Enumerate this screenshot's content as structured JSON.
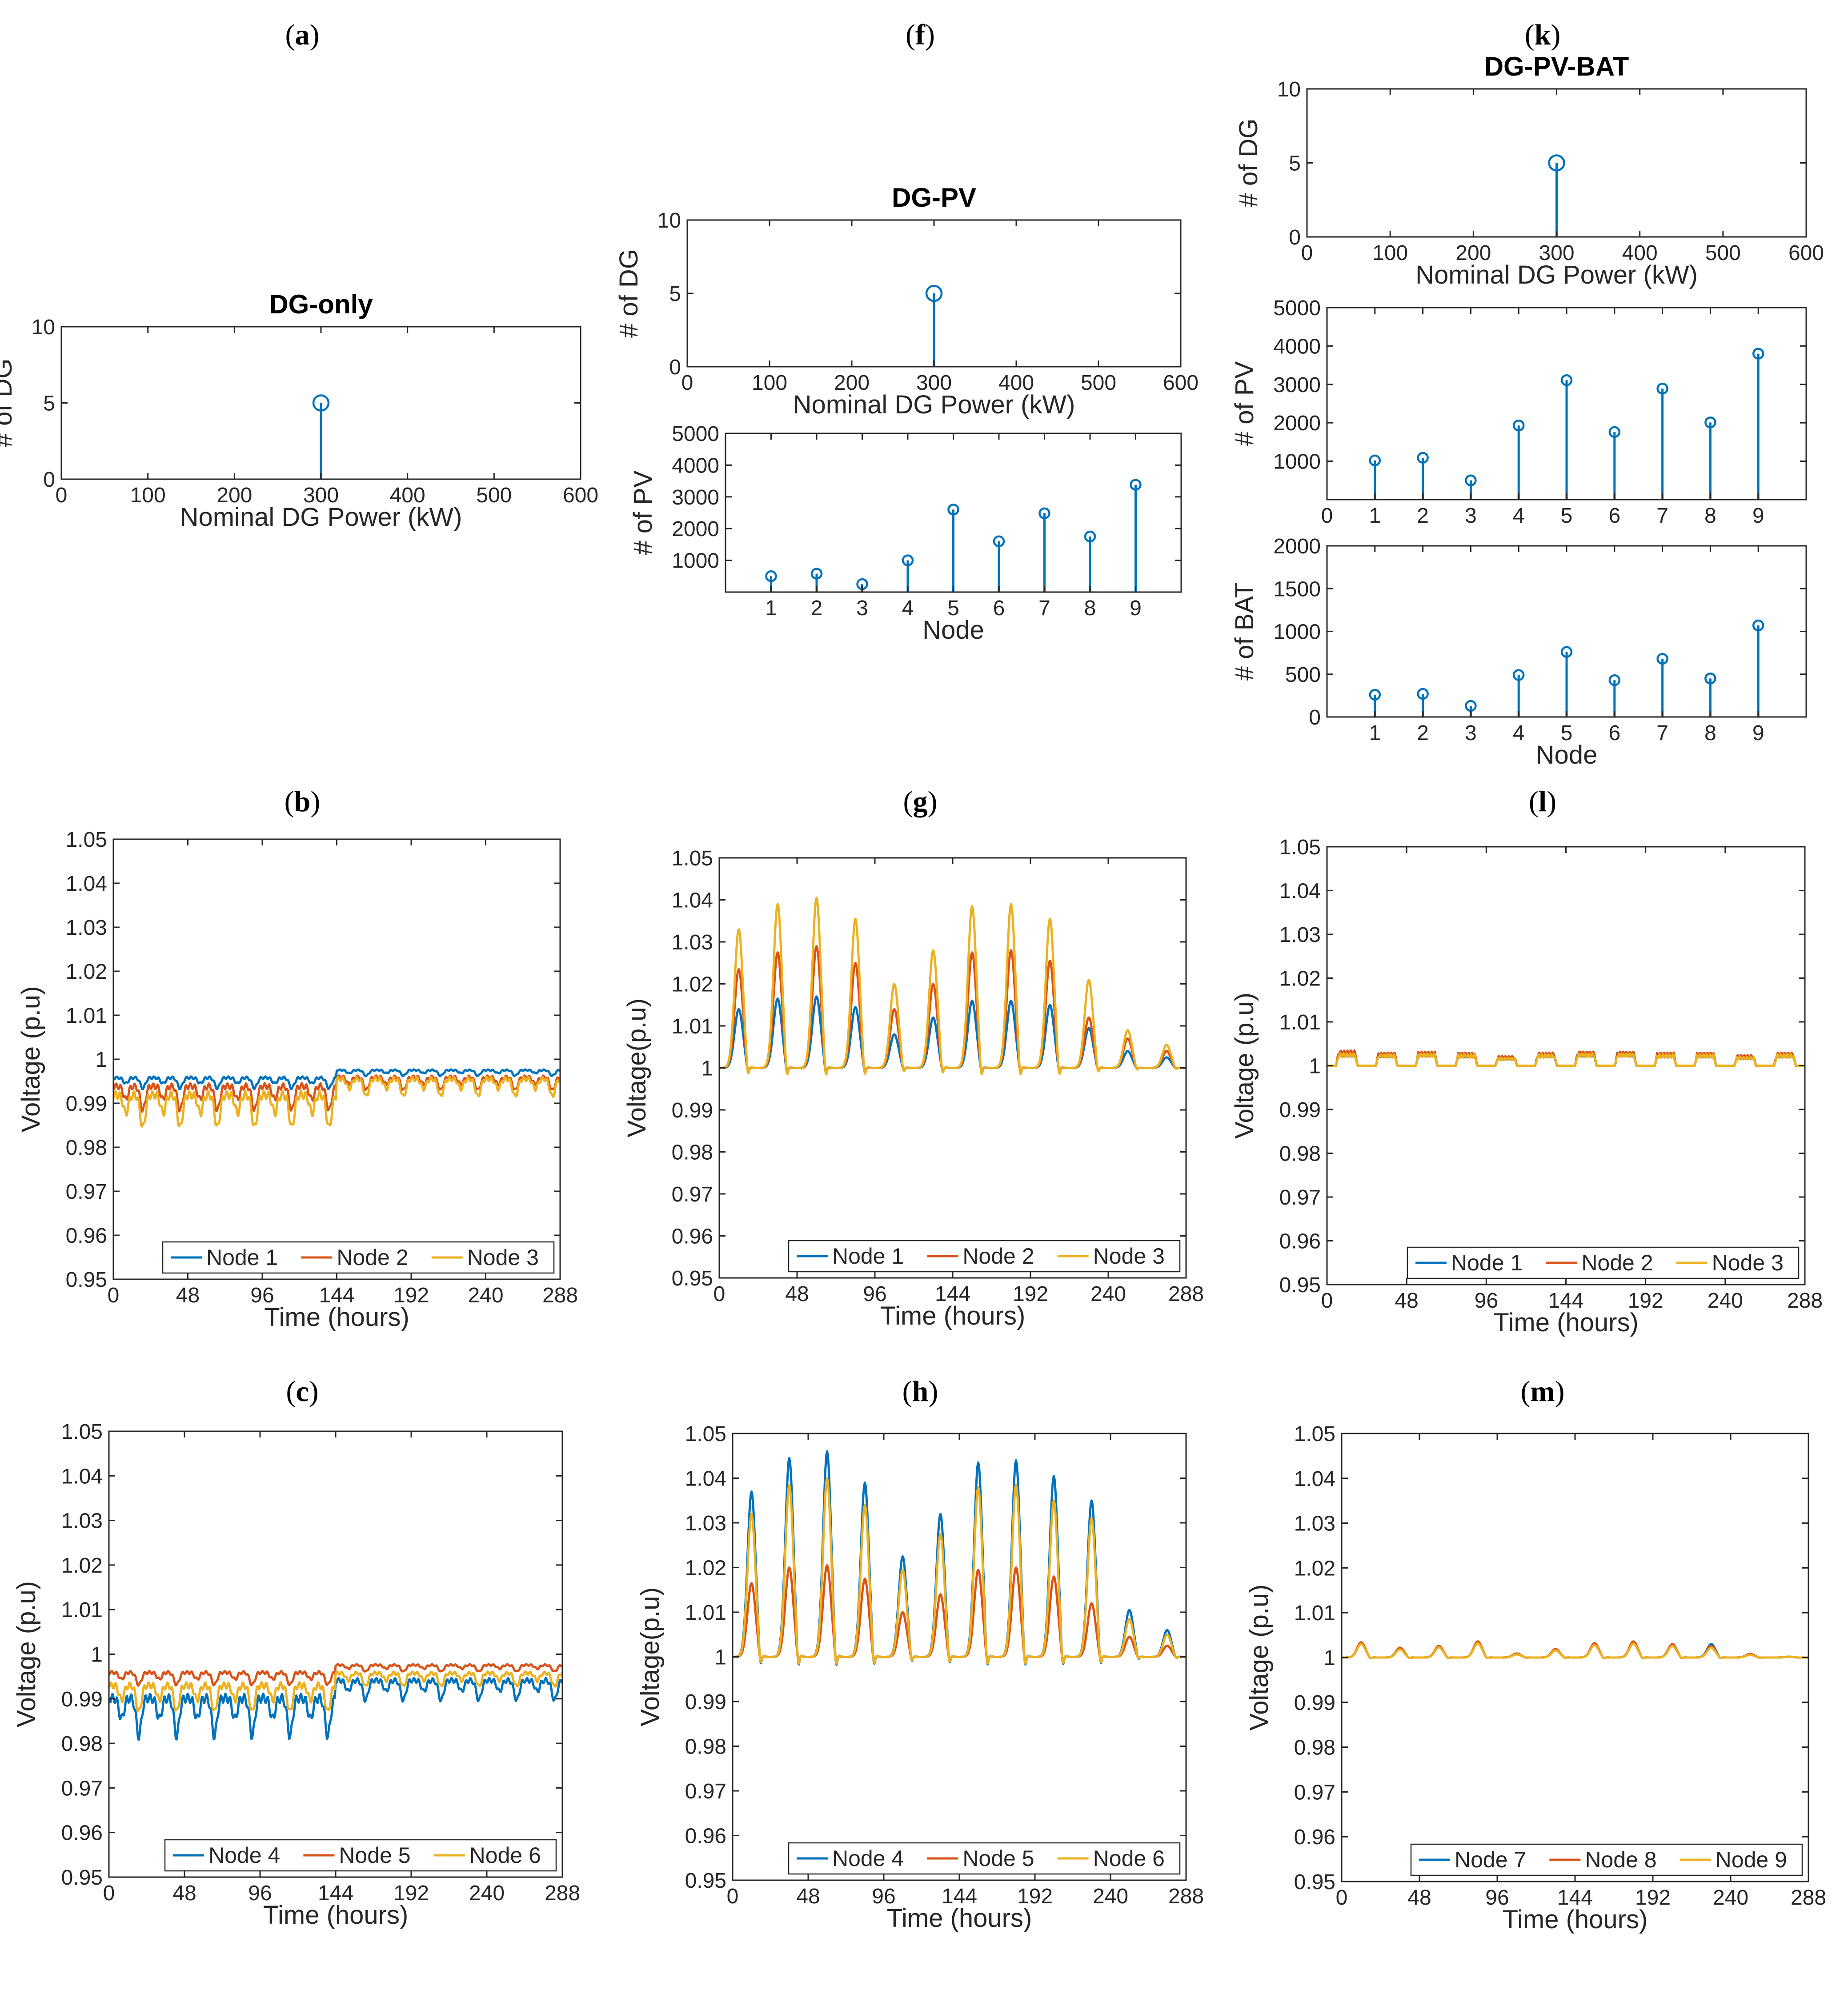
{
  "colors": {
    "series1": "#0072BD",
    "series2": "#D95319",
    "series3": "#EDB120",
    "axis": "#262626",
    "stem": "#0072BD"
  },
  "chart_data": [
    {
      "id": "a",
      "panel_label": "a",
      "type": "stem",
      "title": "DG-only",
      "xlabel": "Nominal DG Power (kW)",
      "ylabel": "# of DG",
      "xlim": [
        0,
        600
      ],
      "ylim": [
        0,
        10
      ],
      "xticks": [
        "0",
        "100",
        "200",
        "300",
        "400",
        "500",
        "600"
      ],
      "yticks": [
        "0",
        "5",
        "10"
      ],
      "x": [
        300
      ],
      "values": [
        5
      ]
    },
    {
      "id": "f1",
      "panel_label": "f",
      "type": "stem",
      "title": "DG-PV",
      "xlabel": "Nominal DG Power (kW)",
      "ylabel": "# of DG",
      "xlim": [
        0,
        600
      ],
      "ylim": [
        0,
        10
      ],
      "xticks": [
        "0",
        "100",
        "200",
        "300",
        "400",
        "500",
        "600"
      ],
      "yticks": [
        "0",
        "5",
        "10"
      ],
      "x": [
        300
      ],
      "values": [
        5
      ]
    },
    {
      "id": "f2",
      "panel_label": "",
      "type": "stem",
      "title": "",
      "xlabel": "Node",
      "ylabel": "# of PV",
      "xlim": [
        0,
        10
      ],
      "ylim": [
        0,
        5000
      ],
      "xticks": [
        "1",
        "2",
        "3",
        "4",
        "5",
        "6",
        "7",
        "8",
        "9"
      ],
      "yticks": [
        "1000",
        "2000",
        "3000",
        "4000",
        "5000"
      ],
      "x": [
        1,
        2,
        3,
        4,
        5,
        6,
        7,
        8,
        9
      ],
      "values": [
        500,
        580,
        250,
        1000,
        2600,
        1600,
        2480,
        1750,
        3380
      ]
    },
    {
      "id": "k1",
      "panel_label": "k",
      "type": "stem",
      "title": "DG-PV-BAT",
      "xlabel": "Nominal DG Power (kW)",
      "ylabel": "# of DG",
      "xlim": [
        0,
        600
      ],
      "ylim": [
        0,
        10
      ],
      "xticks": [
        "0",
        "100",
        "200",
        "300",
        "400",
        "500",
        "600"
      ],
      "yticks": [
        "0",
        "5",
        "10"
      ],
      "x": [
        300
      ],
      "values": [
        5
      ]
    },
    {
      "id": "k2",
      "panel_label": "",
      "type": "stem",
      "title": "",
      "xlabel": "",
      "ylabel": "# of PV",
      "xlim": [
        0,
        10
      ],
      "ylim": [
        0,
        5000
      ],
      "xticks": [
        "0",
        "1",
        "2",
        "3",
        "4",
        "5",
        "6",
        "7",
        "8",
        "9"
      ],
      "yticks": [
        "1000",
        "2000",
        "3000",
        "4000",
        "5000"
      ],
      "x": [
        1,
        2,
        3,
        4,
        5,
        6,
        7,
        8,
        9
      ],
      "values": [
        1020,
        1090,
        500,
        1930,
        3110,
        1760,
        2890,
        2010,
        3800
      ]
    },
    {
      "id": "k3",
      "panel_label": "",
      "type": "stem",
      "title": "",
      "xlabel": "Node",
      "ylabel": "# of BAT",
      "xlim": [
        0,
        10
      ],
      "ylim": [
        0,
        2000
      ],
      "xticks": [
        "1",
        "2",
        "3",
        "4",
        "5",
        "6",
        "7",
        "8",
        "9"
      ],
      "yticks": [
        "0",
        "500",
        "1000",
        "1500",
        "2000"
      ],
      "x": [
        1,
        2,
        3,
        4,
        5,
        6,
        7,
        8,
        9
      ],
      "values": [
        260,
        270,
        130,
        490,
        760,
        430,
        680,
        450,
        1070
      ]
    },
    {
      "id": "b",
      "panel_label": "b",
      "type": "line",
      "title": "",
      "xlabel": "Time (hours)",
      "ylabel": "Voltage (p.u)",
      "xlim": [
        0,
        288
      ],
      "ylim": [
        0.95,
        1.05
      ],
      "xticks": [
        "0",
        "48",
        "96",
        "144",
        "192",
        "240",
        "288"
      ],
      "yticks": [
        "0.95",
        "0.96",
        "0.97",
        "0.98",
        "0.99",
        "1",
        "1.01",
        "1.02",
        "1.03",
        "1.04",
        "1.05"
      ],
      "legend_position": "bottom-right",
      "series": [
        {
          "name": "Node 1",
          "pattern": "load",
          "base1": 0.9952,
          "amp1": 0.0024,
          "base2": 0.9972,
          "amp2": 0.0013
        },
        {
          "name": "Node 2",
          "pattern": "load",
          "base1": 0.9925,
          "amp1": 0.0055,
          "base2": 0.9952,
          "amp2": 0.003
        },
        {
          "name": "Node 3",
          "pattern": "load",
          "base1": 0.99,
          "amp1": 0.0075,
          "base2": 0.9945,
          "amp2": 0.004
        }
      ]
    },
    {
      "id": "g",
      "panel_label": "g",
      "type": "line",
      "title": "",
      "xlabel": "Time (hours)",
      "ylabel": "Voltage(p.u)",
      "xlim": [
        0,
        288
      ],
      "ylim": [
        0.95,
        1.05
      ],
      "xticks": [
        "0",
        "48",
        "96",
        "144",
        "192",
        "240",
        "288"
      ],
      "yticks": [
        "0.95",
        "0.96",
        "0.97",
        "0.98",
        "0.99",
        "1",
        "1.01",
        "1.02",
        "1.03",
        "1.04",
        "1.05"
      ],
      "legend_position": "bottom-right",
      "peak_centers": [
        12,
        36,
        60,
        84,
        108,
        132,
        156,
        180,
        204,
        228,
        252,
        276
      ],
      "series": [
        {
          "name": "Node 1",
          "pattern": "solar",
          "peaks": [
            0.014,
            0.0165,
            0.017,
            0.0145,
            0.008,
            0.012,
            0.016,
            0.016,
            0.015,
            0.0095,
            0.004,
            0.0025
          ]
        },
        {
          "name": "Node 2",
          "pattern": "solar",
          "peaks": [
            0.0235,
            0.0275,
            0.029,
            0.025,
            0.014,
            0.02,
            0.0275,
            0.028,
            0.0255,
            0.012,
            0.007,
            0.004
          ]
        },
        {
          "name": "Node 3",
          "pattern": "solar",
          "peaks": [
            0.033,
            0.039,
            0.0405,
            0.0355,
            0.02,
            0.028,
            0.0385,
            0.039,
            0.0355,
            0.021,
            0.009,
            0.0055
          ]
        }
      ]
    },
    {
      "id": "l",
      "panel_label": "l",
      "type": "line",
      "title": "",
      "xlabel": "Time (hours)",
      "ylabel": "Voltage (p.u)",
      "xlim": [
        0,
        288
      ],
      "ylim": [
        0.95,
        1.05
      ],
      "xticks": [
        "0",
        "48",
        "96",
        "144",
        "192",
        "240",
        "288"
      ],
      "yticks": [
        "0.95",
        "0.96",
        "0.97",
        "0.98",
        "0.99",
        "1",
        "1.01",
        "1.02",
        "1.03",
        "1.04",
        "1.05"
      ],
      "legend_position": "bottom-right",
      "peak_centers": [
        12,
        36,
        60,
        84,
        108,
        132,
        156,
        180,
        204,
        228,
        252,
        276
      ],
      "series": [
        {
          "name": "Node 1",
          "pattern": "plateau",
          "peaks": [
            0.003,
            0.0028,
            0.003,
            0.0028,
            0.002,
            0.0028,
            0.003,
            0.003,
            0.0028,
            0.0028,
            0.0022,
            0.0028
          ]
        },
        {
          "name": "Node 2",
          "pattern": "plateau",
          "peaks": [
            0.0035,
            0.003,
            0.0032,
            0.003,
            0.0022,
            0.003,
            0.0033,
            0.0032,
            0.003,
            0.003,
            0.0024,
            0.003
          ]
        },
        {
          "name": "Node 3",
          "pattern": "plateau",
          "peaks": [
            0.0028,
            0.0026,
            0.0028,
            0.0026,
            0.0018,
            0.0026,
            0.0028,
            0.0028,
            0.0026,
            0.0026,
            0.002,
            0.0026
          ]
        }
      ]
    },
    {
      "id": "c",
      "panel_label": "c",
      "type": "line",
      "title": "",
      "xlabel": "Time (hours)",
      "ylabel": "Voltage (p.u)",
      "xlim": [
        0,
        288
      ],
      "ylim": [
        0.95,
        1.05
      ],
      "xticks": [
        "0",
        "48",
        "96",
        "144",
        "192",
        "240",
        "288"
      ],
      "yticks": [
        "0.95",
        "0.96",
        "0.97",
        "0.98",
        "0.99",
        "1",
        "1.01",
        "1.02",
        "1.03",
        "1.04",
        "1.05"
      ],
      "legend_position": "bottom-right",
      "series": [
        {
          "name": "Node 4",
          "pattern": "load",
          "base1": 0.988,
          "amp1": 0.0085,
          "base2": 0.993,
          "amp2": 0.0045
        },
        {
          "name": "Node 5",
          "pattern": "load",
          "base1": 0.9952,
          "amp1": 0.0028,
          "base2": 0.9972,
          "amp2": 0.0015
        },
        {
          "name": "Node 6",
          "pattern": "load",
          "base1": 0.9915,
          "amp1": 0.006,
          "base2": 0.995,
          "amp2": 0.003
        }
      ]
    },
    {
      "id": "h",
      "panel_label": "h",
      "type": "line",
      "title": "",
      "xlabel": "Time (hours)",
      "ylabel": "Voltage(p.u)",
      "xlim": [
        0,
        288
      ],
      "ylim": [
        0.95,
        1.05
      ],
      "xticks": [
        "0",
        "48",
        "96",
        "144",
        "192",
        "240",
        "288"
      ],
      "yticks": [
        "0.95",
        "0.96",
        "0.97",
        "0.98",
        "0.99",
        "1",
        "1.01",
        "1.02",
        "1.03",
        "1.04",
        "1.05"
      ],
      "legend_position": "bottom-right",
      "peak_centers": [
        12,
        36,
        60,
        84,
        108,
        132,
        156,
        180,
        204,
        228,
        252,
        276
      ],
      "series": [
        {
          "name": "Node 4",
          "pattern": "solar",
          "peaks": [
            0.037,
            0.0445,
            0.046,
            0.039,
            0.0225,
            0.032,
            0.0435,
            0.044,
            0.0405,
            0.035,
            0.0105,
            0.006
          ]
        },
        {
          "name": "Node 5",
          "pattern": "solar",
          "peaks": [
            0.0165,
            0.02,
            0.0205,
            0.0175,
            0.01,
            0.014,
            0.0195,
            0.02,
            0.018,
            0.012,
            0.0045,
            0.0025
          ]
        },
        {
          "name": "Node 6",
          "pattern": "solar",
          "peaks": [
            0.032,
            0.0385,
            0.04,
            0.034,
            0.0195,
            0.0275,
            0.038,
            0.0385,
            0.035,
            0.031,
            0.0085,
            0.005
          ]
        }
      ]
    },
    {
      "id": "m",
      "panel_label": "m",
      "type": "line",
      "title": "",
      "xlabel": "Time (hours)",
      "ylabel": "Voltage (p.u)",
      "xlim": [
        0,
        288
      ],
      "ylim": [
        0.95,
        1.05
      ],
      "xticks": [
        "0",
        "48",
        "96",
        "144",
        "192",
        "240",
        "288"
      ],
      "yticks": [
        "0.95",
        "0.96",
        "0.97",
        "0.98",
        "0.99",
        "1",
        "1.01",
        "1.02",
        "1.03",
        "1.04",
        "1.05"
      ],
      "legend_position": "bottom-right",
      "peak_centers": [
        12,
        36,
        60,
        84,
        108,
        132,
        156,
        180,
        204,
        228,
        252,
        276
      ],
      "series": [
        {
          "name": "Node 7",
          "pattern": "solar",
          "peaks": [
            0.0032,
            0.002,
            0.0025,
            0.0035,
            0.0008,
            0.0018,
            0.003,
            0.0034,
            0.0028,
            0.003,
            0.0008,
            0.0002
          ]
        },
        {
          "name": "Node 8",
          "pattern": "solar",
          "peaks": [
            0.0034,
            0.0022,
            0.0026,
            0.0036,
            0.0009,
            0.0019,
            0.0032,
            0.0036,
            0.003,
            0.0026,
            0.0008,
            0.0002
          ]
        },
        {
          "name": "Node 9",
          "pattern": "solar",
          "peaks": [
            0.003,
            0.0018,
            0.0023,
            0.0032,
            0.0007,
            0.0016,
            0.0028,
            0.0031,
            0.0026,
            0.0022,
            0.0006,
            0.0002
          ]
        }
      ]
    }
  ]
}
